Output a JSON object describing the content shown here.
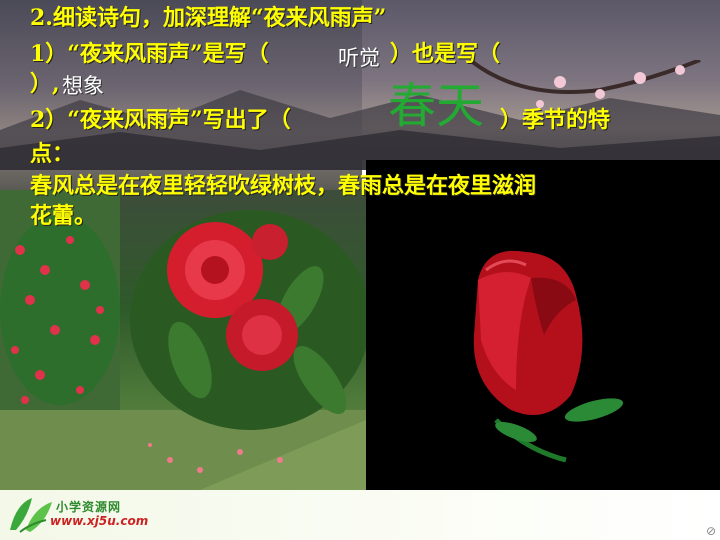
{
  "slide": {
    "heading": "2.细读诗句，加深理解“夜来风雨声”",
    "q1_part1": "1）“夜来风雨声”是写（",
    "q1_answer1": "听觉",
    "q1_part2": "）也是写（",
    "q1_part3": "）,",
    "q1_answer2": "想象",
    "q2_part1": "2）“夜来风雨声”写出了（",
    "q2_answer": "春天",
    "q2_part2": "）季节的特",
    "q2_part3": "点：",
    "explanation_line1": "春风总是在夜里轻轻吹绿树枝，春雨总是在夜里滋润",
    "explanation_line2": "花蕾。"
  },
  "footer": {
    "site_name": "小学资源网",
    "site_url": "www.xj5u.com",
    "logo_icon": "green-leaf-logo-icon",
    "corner_mark": "⊘"
  },
  "colors": {
    "question_text": "#ffff00",
    "answer_text": "#ffffff",
    "season_answer": "#22aa33",
    "site_name": "#2d8a2d",
    "site_url": "#cc2222"
  }
}
